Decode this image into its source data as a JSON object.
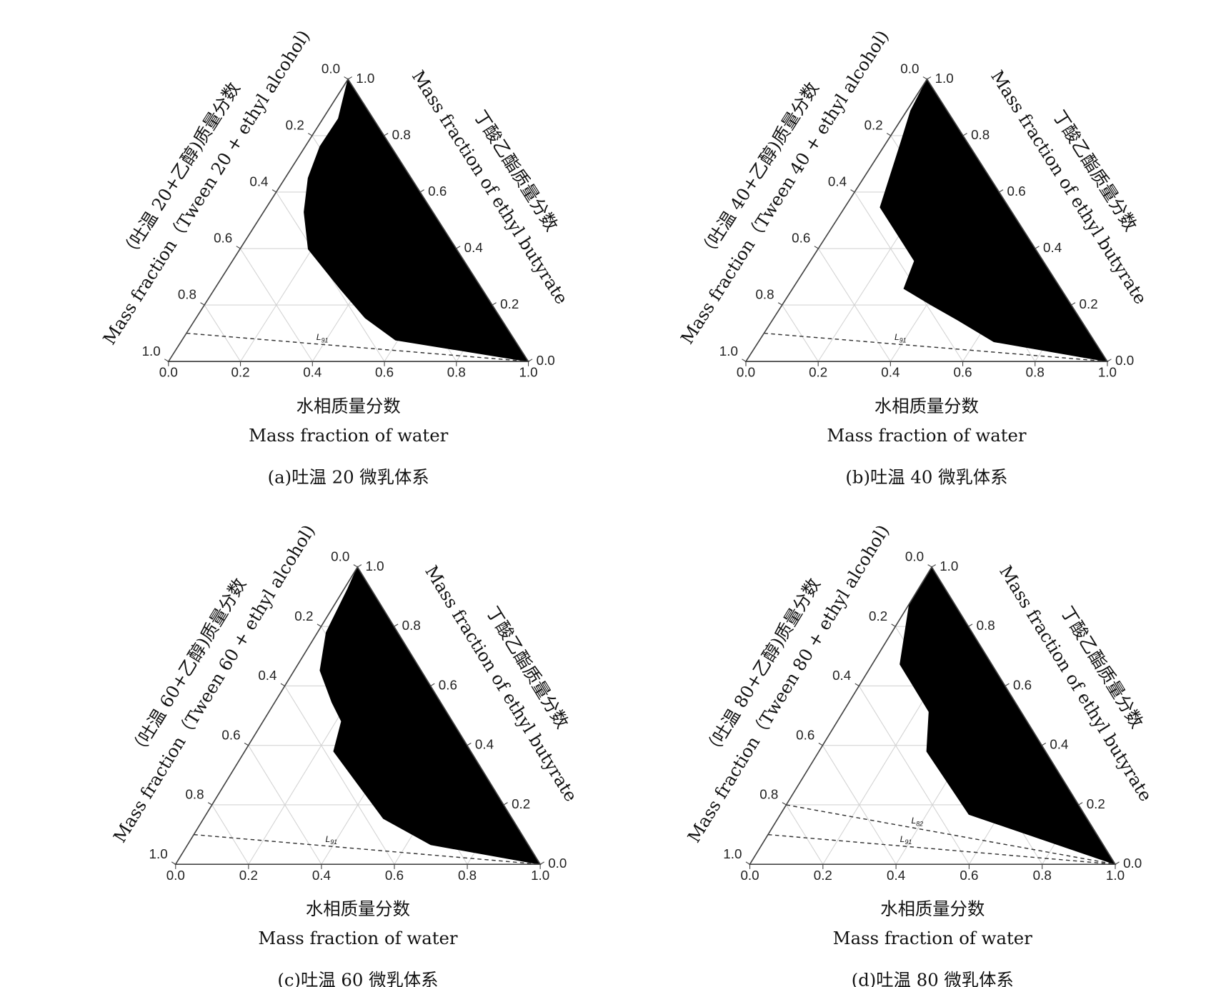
{
  "chart_data": [
    {
      "type": "ternary",
      "caption": "(a)吐温 20 微乳体系",
      "bottom_axis": {
        "title": "水相质量分数",
        "title_en": "Mass fraction of water"
      },
      "left_axis": {
        "title": "（吐温 20+乙醇)质量分数",
        "title_en": "Mass fraction（Tween 20 + ethyl alcohol)"
      },
      "right_axis": {
        "title": "丁酸乙酯质量分数",
        "title_en": "Mass fraction of ethyl butyrate"
      },
      "ticks": [
        {
          "value": 0,
          "label": "0.0"
        },
        {
          "value": 0.2,
          "label": "0.2"
        },
        {
          "value": 0.4,
          "label": "0.4"
        },
        {
          "value": 0.6,
          "label": "0.6"
        },
        {
          "value": 0.8,
          "label": "0.8"
        },
        {
          "value": 1,
          "label": "1.0"
        }
      ],
      "grid": true,
      "region": {
        "color": "#000000",
        "water": [
          0,
          0.043,
          0.041,
          0.064,
          0.113,
          0.19,
          0.348,
          0.47,
          0.593,
          1
        ],
        "oil": [
          1,
          0.86,
          0.762,
          0.65,
          0.529,
          0.398,
          0.258,
          0.154,
          0.076,
          0
        ]
      },
      "dilution_lines": [
        {
          "name": "L",
          "sub": "91",
          "oil": 0.1
        }
      ]
    },
    {
      "type": "ternary",
      "caption": "(b)吐温 40 微乳体系",
      "bottom_axis": {
        "title": "水相质量分数",
        "title_en": "Mass fraction of water"
      },
      "left_axis": {
        "title": "（吐温 40+乙醇)质量分数",
        "title_en": "Mass fraction（Tween 40 + ethyl alcohol)"
      },
      "right_axis": {
        "title": "丁酸乙酯质量分数",
        "title_en": "Mass fraction of ethyl butyrate"
      },
      "ticks": [
        {
          "value": 0,
          "label": "0.0"
        },
        {
          "value": 0.2,
          "label": "0.2"
        },
        {
          "value": 0.4,
          "label": "0.4"
        },
        {
          "value": 0.6,
          "label": "0.6"
        },
        {
          "value": 0.8,
          "label": "0.8"
        },
        {
          "value": 1,
          "label": "1.0"
        }
      ],
      "grid": true,
      "region": {
        "color": "#000000",
        "water": [
          0,
          0.011,
          0.04,
          0.098,
          0.288,
          0.308,
          0.409,
          0.514,
          0.651,
          1
        ],
        "oil": [
          1,
          0.888,
          0.776,
          0.546,
          0.356,
          0.258,
          0.202,
          0.146,
          0.07,
          0
        ]
      },
      "dilution_lines": [
        {
          "name": "L",
          "sub": "91",
          "oil": 0.1
        }
      ]
    },
    {
      "type": "ternary",
      "caption": "(c)吐温 60 微乳体系",
      "bottom_axis": {
        "title": "水相质量分数",
        "title_en": "Mass fraction of water"
      },
      "left_axis": {
        "title": "（吐温 60+乙醇)质量分数",
        "title_en": "Mass fraction（Tween 60 + ethyl alcohol)"
      },
      "right_axis": {
        "title": "丁酸乙酯质量分数",
        "title_en": "Mass fraction of ethyl butyrate"
      },
      "ticks": [
        {
          "value": 0,
          "label": "0.0"
        },
        {
          "value": 0.2,
          "label": "0.2"
        },
        {
          "value": 0.4,
          "label": "0.4"
        },
        {
          "value": 0.6,
          "label": "0.6"
        },
        {
          "value": 0.8,
          "label": "0.8"
        },
        {
          "value": 1,
          "label": "1.0"
        }
      ],
      "grid": true,
      "region": {
        "color": "#000000",
        "water": [
          0,
          0.01,
          0.024,
          0.071,
          0.157,
          0.215,
          0.244,
          0.493,
          0.667,
          1
        ],
        "oil": [
          1,
          0.926,
          0.78,
          0.652,
          0.545,
          0.481,
          0.38,
          0.154,
          0.066,
          0
        ]
      },
      "dilution_lines": [
        {
          "name": "L",
          "sub": "91",
          "oil": 0.1
        }
      ]
    },
    {
      "type": "ternary",
      "caption": "(d)吐温 80 微乳体系",
      "bottom_axis": {
        "title": "水相质量分数",
        "title_en": "Mass fraction of water"
      },
      "left_axis": {
        "title": "（吐温 80+乙醇)质量分数",
        "title_en": "Mass fraction（Tween 80 + ethyl alcohol)"
      },
      "right_axis": {
        "title": "丁酸乙酯质量分数",
        "title_en": "Mass fraction of ethyl butyrate"
      },
      "ticks": [
        {
          "value": 0,
          "label": "0.0"
        },
        {
          "value": 0.2,
          "label": "0.2"
        },
        {
          "value": 0.4,
          "label": "0.4"
        },
        {
          "value": 0.6,
          "label": "0.6"
        },
        {
          "value": 0.8,
          "label": "0.8"
        },
        {
          "value": 1,
          "label": "1.0"
        }
      ],
      "grid": true,
      "region": {
        "color": "#000000",
        "water": [
          0,
          0.002,
          0.076,
          0.235,
          0.295,
          0.516,
          1
        ],
        "oil": [
          1,
          0.872,
          0.673,
          0.513,
          0.38,
          0.168,
          0
        ]
      },
      "dilution_lines": [
        {
          "name": "L",
          "sub": "82",
          "oil": 0.2
        },
        {
          "name": "L",
          "sub": "91",
          "oil": 0.1
        }
      ]
    }
  ]
}
